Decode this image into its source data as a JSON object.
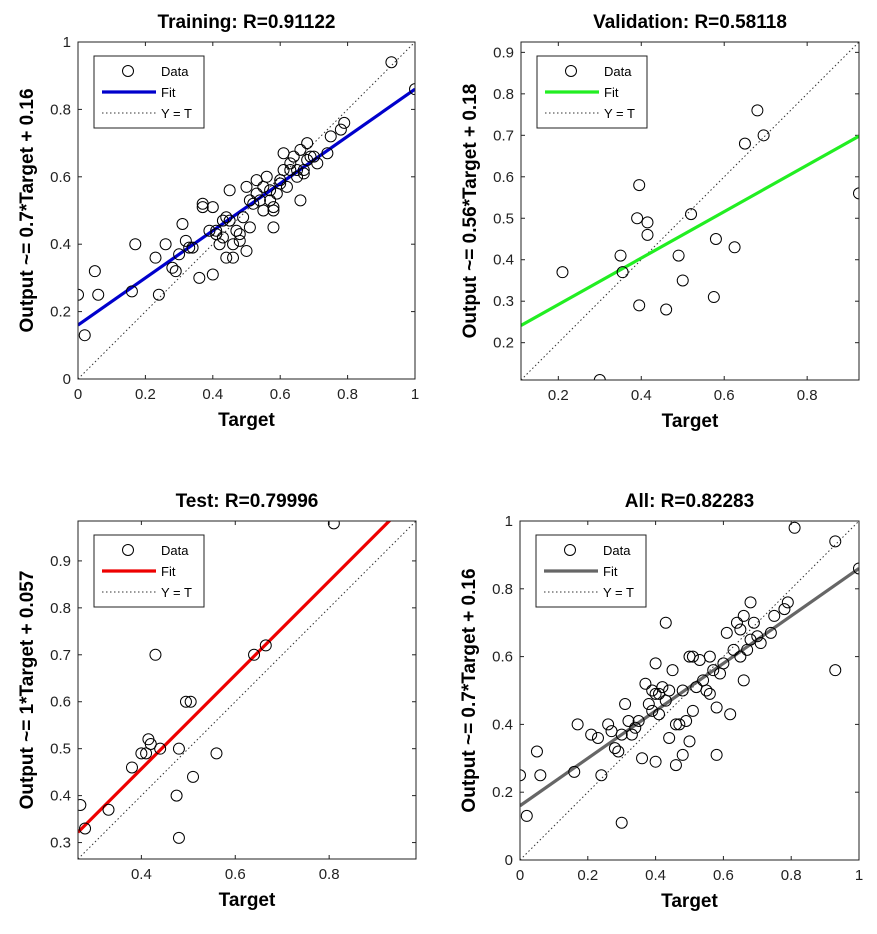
{
  "chart_data": [
    {
      "type": "scatter",
      "title": "Training: R=0.91122",
      "xlabel": "Target",
      "ylabel": "Output ~= 0.7*Target + 0.16",
      "xlim": [
        0,
        1
      ],
      "ylim": [
        0,
        1
      ],
      "xticks": [
        0,
        0.2,
        0.4,
        0.6,
        0.8,
        1
      ],
      "yticks": [
        0,
        0.2,
        0.4,
        0.6,
        0.8,
        1
      ],
      "fit_color": "#0000cc",
      "fit": {
        "slope": 0.7,
        "intercept": 0.16
      },
      "legend": {
        "position": "top-left",
        "entries": [
          "Data",
          "Fit",
          "Y = T"
        ]
      },
      "points": [
        [
          0.0,
          0.25
        ],
        [
          0.02,
          0.13
        ],
        [
          0.05,
          0.32
        ],
        [
          0.06,
          0.25
        ],
        [
          0.16,
          0.26
        ],
        [
          0.17,
          0.4
        ],
        [
          0.23,
          0.36
        ],
        [
          0.24,
          0.25
        ],
        [
          0.26,
          0.4
        ],
        [
          0.28,
          0.33
        ],
        [
          0.29,
          0.32
        ],
        [
          0.3,
          0.37
        ],
        [
          0.31,
          0.46
        ],
        [
          0.32,
          0.41
        ],
        [
          0.33,
          0.39
        ],
        [
          0.34,
          0.39
        ],
        [
          0.36,
          0.3
        ],
        [
          0.37,
          0.52
        ],
        [
          0.37,
          0.51
        ],
        [
          0.39,
          0.44
        ],
        [
          0.4,
          0.31
        ],
        [
          0.4,
          0.51
        ],
        [
          0.41,
          0.43
        ],
        [
          0.41,
          0.44
        ],
        [
          0.42,
          0.4
        ],
        [
          0.43,
          0.47
        ],
        [
          0.43,
          0.42
        ],
        [
          0.44,
          0.36
        ],
        [
          0.44,
          0.48
        ],
        [
          0.45,
          0.56
        ],
        [
          0.45,
          0.47
        ],
        [
          0.46,
          0.4
        ],
        [
          0.46,
          0.36
        ],
        [
          0.47,
          0.44
        ],
        [
          0.48,
          0.41
        ],
        [
          0.48,
          0.43
        ],
        [
          0.49,
          0.48
        ],
        [
          0.5,
          0.57
        ],
        [
          0.5,
          0.38
        ],
        [
          0.51,
          0.45
        ],
        [
          0.51,
          0.53
        ],
        [
          0.52,
          0.52
        ],
        [
          0.53,
          0.59
        ],
        [
          0.53,
          0.55
        ],
        [
          0.54,
          0.53
        ],
        [
          0.55,
          0.5
        ],
        [
          0.55,
          0.57
        ],
        [
          0.56,
          0.6
        ],
        [
          0.57,
          0.56
        ],
        [
          0.57,
          0.53
        ],
        [
          0.58,
          0.45
        ],
        [
          0.58,
          0.51
        ],
        [
          0.58,
          0.5
        ],
        [
          0.59,
          0.55
        ],
        [
          0.6,
          0.58
        ],
        [
          0.6,
          0.59
        ],
        [
          0.61,
          0.67
        ],
        [
          0.61,
          0.62
        ],
        [
          0.62,
          0.57
        ],
        [
          0.63,
          0.64
        ],
        [
          0.63,
          0.62
        ],
        [
          0.64,
          0.66
        ],
        [
          0.65,
          0.6
        ],
        [
          0.65,
          0.62
        ],
        [
          0.66,
          0.53
        ],
        [
          0.66,
          0.68
        ],
        [
          0.67,
          0.61
        ],
        [
          0.67,
          0.62
        ],
        [
          0.68,
          0.65
        ],
        [
          0.68,
          0.7
        ],
        [
          0.69,
          0.66
        ],
        [
          0.7,
          0.66
        ],
        [
          0.71,
          0.64
        ],
        [
          0.74,
          0.67
        ],
        [
          0.75,
          0.72
        ],
        [
          0.78,
          0.74
        ],
        [
          0.79,
          0.76
        ],
        [
          0.93,
          0.94
        ],
        [
          1.0,
          0.86
        ]
      ]
    },
    {
      "type": "scatter",
      "title": "Validation: R=0.58118",
      "xlabel": "Target",
      "ylabel": "Output ~= 0.56*Target + 0.18",
      "xlim": [
        0.11,
        0.925
      ],
      "ylim": [
        0.11,
        0.925
      ],
      "xticks": [
        0.2,
        0.4,
        0.6,
        0.8
      ],
      "yticks": [
        0.2,
        0.3,
        0.4,
        0.5,
        0.6,
        0.7,
        0.8,
        0.9
      ],
      "fit_color": "#22ee22",
      "fit": {
        "slope": 0.56,
        "intercept": 0.18
      },
      "legend": {
        "position": "top-left",
        "entries": [
          "Data",
          "Fit",
          "Y = T"
        ]
      },
      "points": [
        [
          0.21,
          0.37
        ],
        [
          0.3,
          0.11
        ],
        [
          0.35,
          0.41
        ],
        [
          0.355,
          0.37
        ],
        [
          0.39,
          0.5
        ],
        [
          0.395,
          0.58
        ],
        [
          0.395,
          0.29
        ],
        [
          0.415,
          0.49
        ],
        [
          0.415,
          0.46
        ],
        [
          0.46,
          0.28
        ],
        [
          0.49,
          0.41
        ],
        [
          0.5,
          0.35
        ],
        [
          0.52,
          0.51
        ],
        [
          0.58,
          0.45
        ],
        [
          0.575,
          0.31
        ],
        [
          0.625,
          0.43
        ],
        [
          0.65,
          0.68
        ],
        [
          0.68,
          0.76
        ],
        [
          0.695,
          0.7
        ],
        [
          0.925,
          0.56
        ]
      ]
    },
    {
      "type": "scatter",
      "title": "Test: R=0.79996",
      "xlabel": "Target",
      "ylabel": "Output ~= 1*Target + 0.057",
      "xlim": [
        0.265,
        0.985
      ],
      "ylim": [
        0.265,
        0.985
      ],
      "xticks": [
        0.4,
        0.6,
        0.8
      ],
      "yticks": [
        0.3,
        0.4,
        0.5,
        0.6,
        0.7,
        0.8,
        0.9
      ],
      "fit_color": "#ee0000",
      "fit": {
        "slope": 1,
        "intercept": 0.057
      },
      "legend": {
        "position": "top-left",
        "entries": [
          "Data",
          "Fit",
          "Y = T"
        ]
      },
      "points": [
        [
          0.27,
          0.38
        ],
        [
          0.28,
          0.33
        ],
        [
          0.33,
          0.37
        ],
        [
          0.38,
          0.46
        ],
        [
          0.4,
          0.49
        ],
        [
          0.41,
          0.49
        ],
        [
          0.415,
          0.52
        ],
        [
          0.42,
          0.51
        ],
        [
          0.43,
          0.7
        ],
        [
          0.44,
          0.5
        ],
        [
          0.475,
          0.4
        ],
        [
          0.48,
          0.5
        ],
        [
          0.48,
          0.31
        ],
        [
          0.495,
          0.6
        ],
        [
          0.505,
          0.6
        ],
        [
          0.51,
          0.44
        ],
        [
          0.56,
          0.49
        ],
        [
          0.64,
          0.7
        ],
        [
          0.665,
          0.72
        ],
        [
          0.81,
          0.98
        ]
      ]
    },
    {
      "type": "scatter",
      "title": "All: R=0.82283",
      "xlabel": "Target",
      "ylabel": "Output ~= 0.7*Target + 0.16",
      "xlim": [
        0,
        1
      ],
      "ylim": [
        0,
        1
      ],
      "xticks": [
        0,
        0.2,
        0.4,
        0.6,
        0.8,
        1
      ],
      "yticks": [
        0,
        0.2,
        0.4,
        0.6,
        0.8,
        1
      ],
      "fit_color": "#666666",
      "fit": {
        "slope": 0.7,
        "intercept": 0.16
      },
      "legend": {
        "position": "top-left",
        "entries": [
          "Data",
          "Fit",
          "Y = T"
        ]
      },
      "points": [
        [
          0.0,
          0.25
        ],
        [
          0.02,
          0.13
        ],
        [
          0.05,
          0.32
        ],
        [
          0.06,
          0.25
        ],
        [
          0.16,
          0.26
        ],
        [
          0.17,
          0.4
        ],
        [
          0.21,
          0.37
        ],
        [
          0.23,
          0.36
        ],
        [
          0.24,
          0.25
        ],
        [
          0.26,
          0.4
        ],
        [
          0.27,
          0.38
        ],
        [
          0.28,
          0.33
        ],
        [
          0.29,
          0.32
        ],
        [
          0.3,
          0.11
        ],
        [
          0.3,
          0.37
        ],
        [
          0.31,
          0.46
        ],
        [
          0.32,
          0.41
        ],
        [
          0.33,
          0.37
        ],
        [
          0.34,
          0.39
        ],
        [
          0.35,
          0.41
        ],
        [
          0.36,
          0.3
        ],
        [
          0.37,
          0.52
        ],
        [
          0.38,
          0.46
        ],
        [
          0.39,
          0.44
        ],
        [
          0.39,
          0.5
        ],
        [
          0.4,
          0.58
        ],
        [
          0.4,
          0.29
        ],
        [
          0.4,
          0.49
        ],
        [
          0.41,
          0.43
        ],
        [
          0.41,
          0.49
        ],
        [
          0.42,
          0.51
        ],
        [
          0.43,
          0.7
        ],
        [
          0.43,
          0.47
        ],
        [
          0.44,
          0.36
        ],
        [
          0.44,
          0.5
        ],
        [
          0.45,
          0.56
        ],
        [
          0.46,
          0.28
        ],
        [
          0.46,
          0.4
        ],
        [
          0.47,
          0.4
        ],
        [
          0.48,
          0.31
        ],
        [
          0.48,
          0.5
        ],
        [
          0.49,
          0.41
        ],
        [
          0.5,
          0.6
        ],
        [
          0.5,
          0.35
        ],
        [
          0.51,
          0.6
        ],
        [
          0.51,
          0.44
        ],
        [
          0.52,
          0.51
        ],
        [
          0.53,
          0.59
        ],
        [
          0.54,
          0.53
        ],
        [
          0.55,
          0.5
        ],
        [
          0.56,
          0.49
        ],
        [
          0.56,
          0.6
        ],
        [
          0.57,
          0.56
        ],
        [
          0.58,
          0.31
        ],
        [
          0.58,
          0.45
        ],
        [
          0.59,
          0.55
        ],
        [
          0.6,
          0.58
        ],
        [
          0.61,
          0.67
        ],
        [
          0.62,
          0.43
        ],
        [
          0.63,
          0.62
        ],
        [
          0.64,
          0.7
        ],
        [
          0.65,
          0.6
        ],
        [
          0.65,
          0.68
        ],
        [
          0.66,
          0.53
        ],
        [
          0.66,
          0.72
        ],
        [
          0.67,
          0.62
        ],
        [
          0.68,
          0.76
        ],
        [
          0.68,
          0.65
        ],
        [
          0.69,
          0.7
        ],
        [
          0.7,
          0.66
        ],
        [
          0.71,
          0.64
        ],
        [
          0.74,
          0.67
        ],
        [
          0.75,
          0.72
        ],
        [
          0.78,
          0.74
        ],
        [
          0.79,
          0.76
        ],
        [
          0.81,
          0.98
        ],
        [
          0.93,
          0.94
        ],
        [
          0.93,
          0.56
        ],
        [
          1.0,
          0.86
        ]
      ]
    }
  ]
}
